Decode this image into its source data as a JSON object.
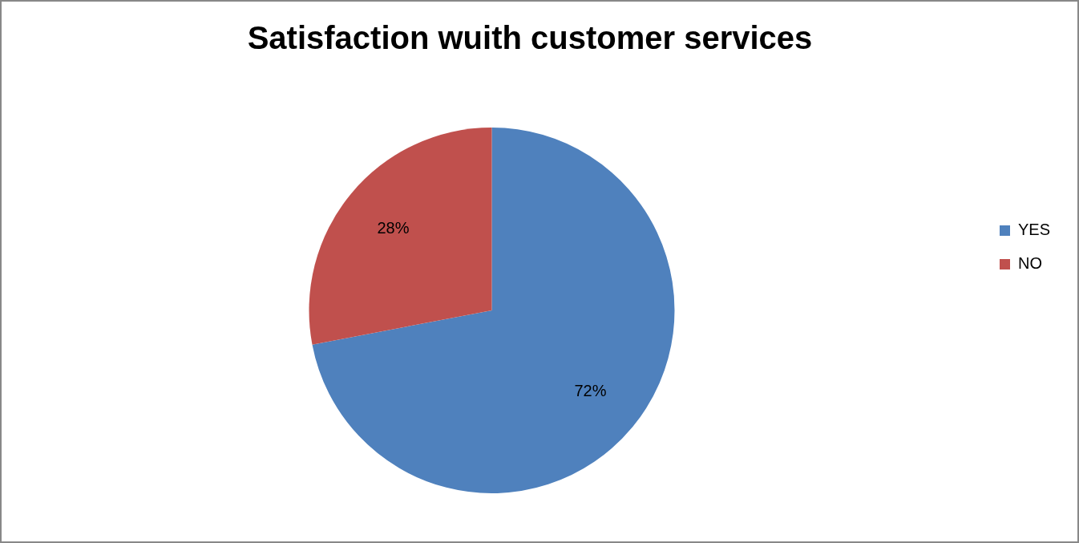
{
  "chart_data": {
    "type": "pie",
    "title": "Satisfaction wuith customer services",
    "categories": [
      "YES",
      "NO"
    ],
    "values": [
      72,
      28
    ],
    "colors": [
      "#4f81bd",
      "#c0504d"
    ],
    "value_labels": [
      "72%",
      "28%"
    ],
    "legend": "right"
  }
}
